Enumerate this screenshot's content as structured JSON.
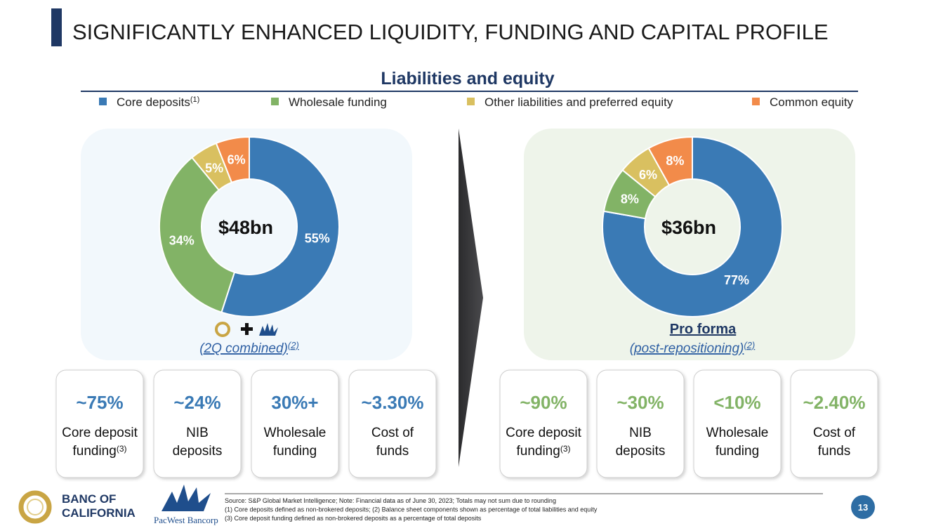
{
  "title": "SIGNIFICANTLY ENHANCED LIQUIDITY, FUNDING AND CAPITAL PROFILE",
  "section_title": "Liabilities and equity",
  "legend_note": "(1)",
  "chart_data": [
    {
      "type": "pie",
      "donut": true,
      "center_label": "$48bn",
      "categories": [
        "Core deposits",
        "Wholesale funding",
        "Other liabilities and preferred equity",
        "Common equity"
      ],
      "values": [
        55,
        34,
        5,
        6
      ],
      "value_labels": [
        "55%",
        "34%",
        "5%",
        "6%"
      ],
      "colors": [
        "#3a7ab5",
        "#82b366",
        "#d9c060",
        "#f28b4a"
      ],
      "caption": "(2Q combined)",
      "caption_note": "(2)"
    },
    {
      "type": "pie",
      "donut": true,
      "center_label": "$36bn",
      "categories": [
        "Core deposits",
        "Wholesale funding",
        "Other liabilities and preferred equity",
        "Common equity"
      ],
      "values": [
        77,
        8,
        6,
        8
      ],
      "value_labels": [
        "77%",
        "8%",
        "6%",
        "8%"
      ],
      "colors": [
        "#3a7ab5",
        "#82b366",
        "#d9c060",
        "#f28b4a"
      ],
      "caption_title": "Pro forma",
      "caption": "(post-repositioning)",
      "caption_note": "(2)"
    }
  ],
  "left_metrics": [
    {
      "value": "~75%",
      "lines": [
        "Core deposit",
        "funding"
      ],
      "note": "(3)"
    },
    {
      "value": "~24%",
      "lines": [
        "NIB",
        "deposits"
      ]
    },
    {
      "value": "30%+",
      "lines": [
        "Wholesale",
        "funding"
      ]
    },
    {
      "value": "~3.30%",
      "lines": [
        "Cost of",
        "funds"
      ]
    }
  ],
  "right_metrics": [
    {
      "value": "~90%",
      "lines": [
        "Core deposit",
        "funding"
      ],
      "note": "(3)"
    },
    {
      "value": "~30%",
      "lines": [
        "NIB",
        "deposits"
      ]
    },
    {
      "value": "<10%",
      "lines": [
        "Wholesale",
        "funding"
      ]
    },
    {
      "value": "~2.40%",
      "lines": [
        "Cost of",
        "funds"
      ]
    }
  ],
  "footer": {
    "logo_lines": [
      "BANC OF",
      "CALIFORNIA"
    ],
    "partner_logo": "PacWest Bancorp",
    "notes": [
      "Source: S&P Global Market Intelligence; Note: Financial data as of June 30, 2023; Totals may not sum due to rounding",
      "(1) Core deposits defined as non-brokered deposits; (2) Balance sheet components shown as percentage of total liabilities and equity",
      "(3) Core deposit funding defined as non-brokered deposits as a percentage of total deposits"
    ],
    "page_number": "13"
  }
}
